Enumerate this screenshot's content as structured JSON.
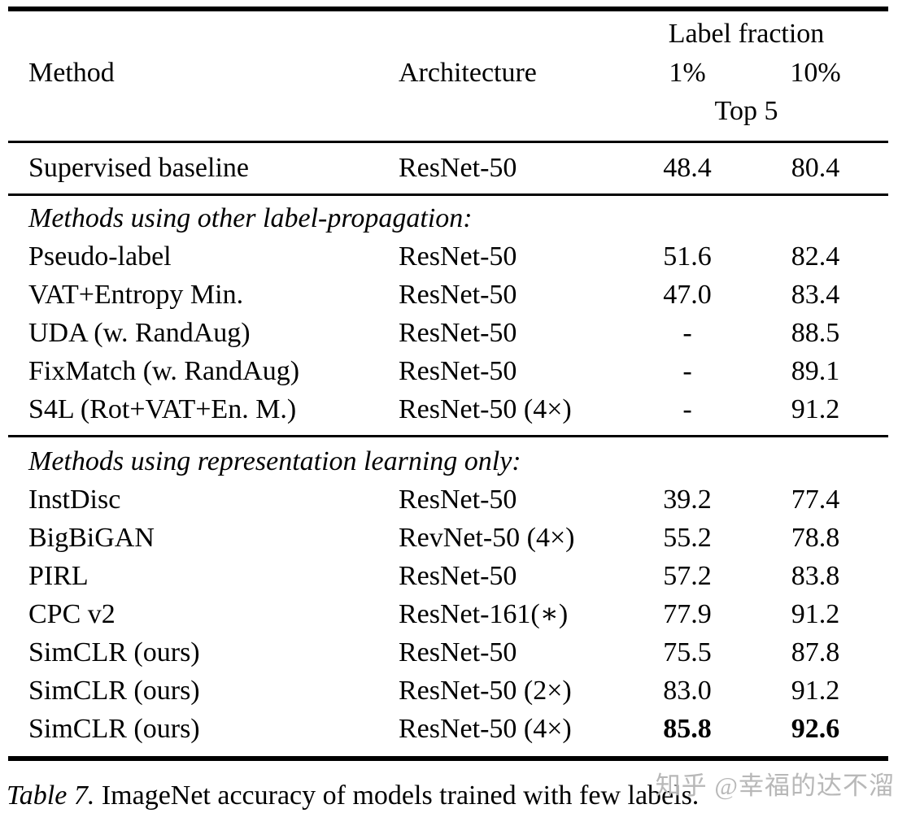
{
  "table": {
    "header": {
      "label_fraction": "Label fraction",
      "method": "Method",
      "architecture": "Architecture",
      "col_1pct": "1%",
      "col_10pct": "10%",
      "top5": "Top 5"
    },
    "supervised_row": {
      "method": "Supervised baseline",
      "arch": "ResNet-50",
      "v1": "48.4",
      "v10": "80.4"
    },
    "section1": {
      "title": "Methods using other label-propagation:",
      "rows": [
        {
          "method": "Pseudo-label",
          "arch": "ResNet-50",
          "v1": "51.6",
          "v10": "82.4"
        },
        {
          "method": "VAT+Entropy Min.",
          "arch": "ResNet-50",
          "v1": "47.0",
          "v10": "83.4"
        },
        {
          "method": "UDA (w. RandAug)",
          "arch": "ResNet-50",
          "v1": "-",
          "v10": "88.5"
        },
        {
          "method": "FixMatch (w. RandAug)",
          "arch": "ResNet-50",
          "v1": "-",
          "v10": "89.1"
        },
        {
          "method": "S4L (Rot+VAT+En. M.)",
          "arch": "ResNet-50 (4×)",
          "v1": "-",
          "v10": "91.2"
        }
      ]
    },
    "section2": {
      "title": "Methods using representation learning only:",
      "rows": [
        {
          "method": "InstDisc",
          "arch": "ResNet-50",
          "v1": "39.2",
          "v10": "77.4"
        },
        {
          "method": "BigBiGAN",
          "arch": "RevNet-50 (4×)",
          "v1": "55.2",
          "v10": "78.8"
        },
        {
          "method": "PIRL",
          "arch": "ResNet-50",
          "v1": "57.2",
          "v10": "83.8"
        },
        {
          "method": "CPC v2",
          "arch": "ResNet-161(∗)",
          "v1": "77.9",
          "v10": "91.2"
        },
        {
          "method": "SimCLR (ours)",
          "arch": "ResNet-50",
          "v1": "75.5",
          "v10": "87.8"
        },
        {
          "method": "SimCLR (ours)",
          "arch": "ResNet-50 (2×)",
          "v1": "83.0",
          "v10": "91.2"
        },
        {
          "method": "SimCLR (ours)",
          "arch": "ResNet-50 (4×)",
          "v1": "85.8",
          "v10": "92.6"
        }
      ]
    }
  },
  "caption": {
    "label": "Table 7.",
    "text": " ImageNet accuracy of models trained with few labels."
  },
  "watermark": "知乎 @幸福的达不溜",
  "colors": {
    "text": "#000000",
    "background": "#ffffff",
    "watermark": "#b8b8b8",
    "rule": "#000000"
  }
}
